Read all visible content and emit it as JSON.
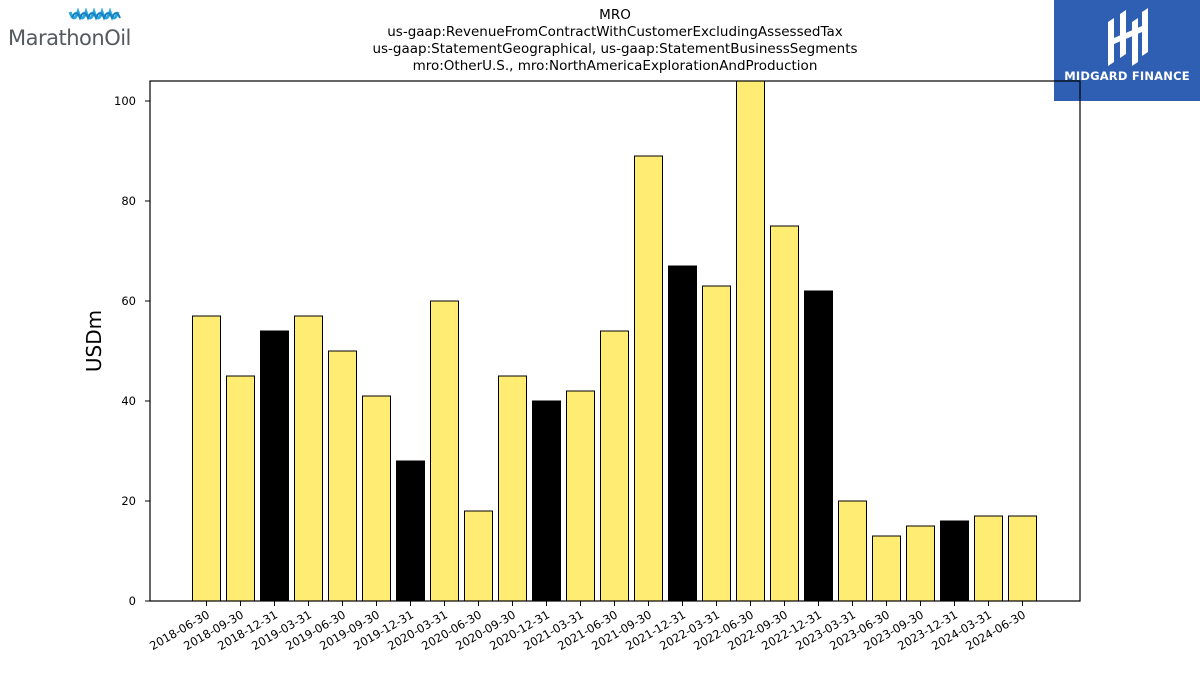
{
  "header": {
    "title_lines": [
      "MRO",
      "us-gaap:RevenueFromContractWithCustomerExcludingAssessedTax",
      "us-gaap:StatementGeographical, us-gaap:StatementBusinessSegments",
      "mro:OtherU.S., mro:NorthAmericaExplorationAndProduction"
    ]
  },
  "logos": {
    "left_text": "MarathonOil",
    "left_icon": "marathon-waves-icon",
    "right_text": "MIDGARD FINANCE",
    "right_icon": "midgard-m-icon",
    "right_bg": "#2f5fb3"
  },
  "colors": {
    "bar_normal": "#ffec72",
    "bar_highlight": "#000000",
    "bar_edge": "#000000",
    "logo_left_blue": "#29a8e0",
    "logo_left_text": "#555a5f"
  },
  "chart_data": {
    "type": "bar",
    "title": "MRO",
    "xlabel": "",
    "ylabel": "USDm",
    "ylim": [
      0,
      104
    ],
    "yticks": [
      0,
      20,
      40,
      60,
      80,
      100
    ],
    "grid": false,
    "categories": [
      "2018-06-30",
      "2018-09-30",
      "2018-12-31",
      "2019-03-31",
      "2019-06-30",
      "2019-09-30",
      "2019-12-31",
      "2020-03-31",
      "2020-06-30",
      "2020-09-30",
      "2020-12-31",
      "2021-03-31",
      "2021-06-30",
      "2021-09-30",
      "2021-12-31",
      "2022-03-31",
      "2022-06-30",
      "2022-09-30",
      "2022-12-31",
      "2023-03-31",
      "2023-06-30",
      "2023-09-30",
      "2023-12-31",
      "2024-03-31",
      "2024-06-30"
    ],
    "values": [
      57,
      45,
      54,
      57,
      50,
      41,
      28,
      60,
      18,
      45,
      40,
      42,
      54,
      89,
      67,
      63,
      105,
      75,
      62,
      20,
      13,
      15,
      16,
      17,
      17
    ],
    "highlight": [
      false,
      false,
      true,
      false,
      false,
      false,
      true,
      false,
      false,
      false,
      true,
      false,
      false,
      false,
      true,
      false,
      false,
      false,
      true,
      false,
      false,
      false,
      true,
      false,
      false
    ]
  }
}
